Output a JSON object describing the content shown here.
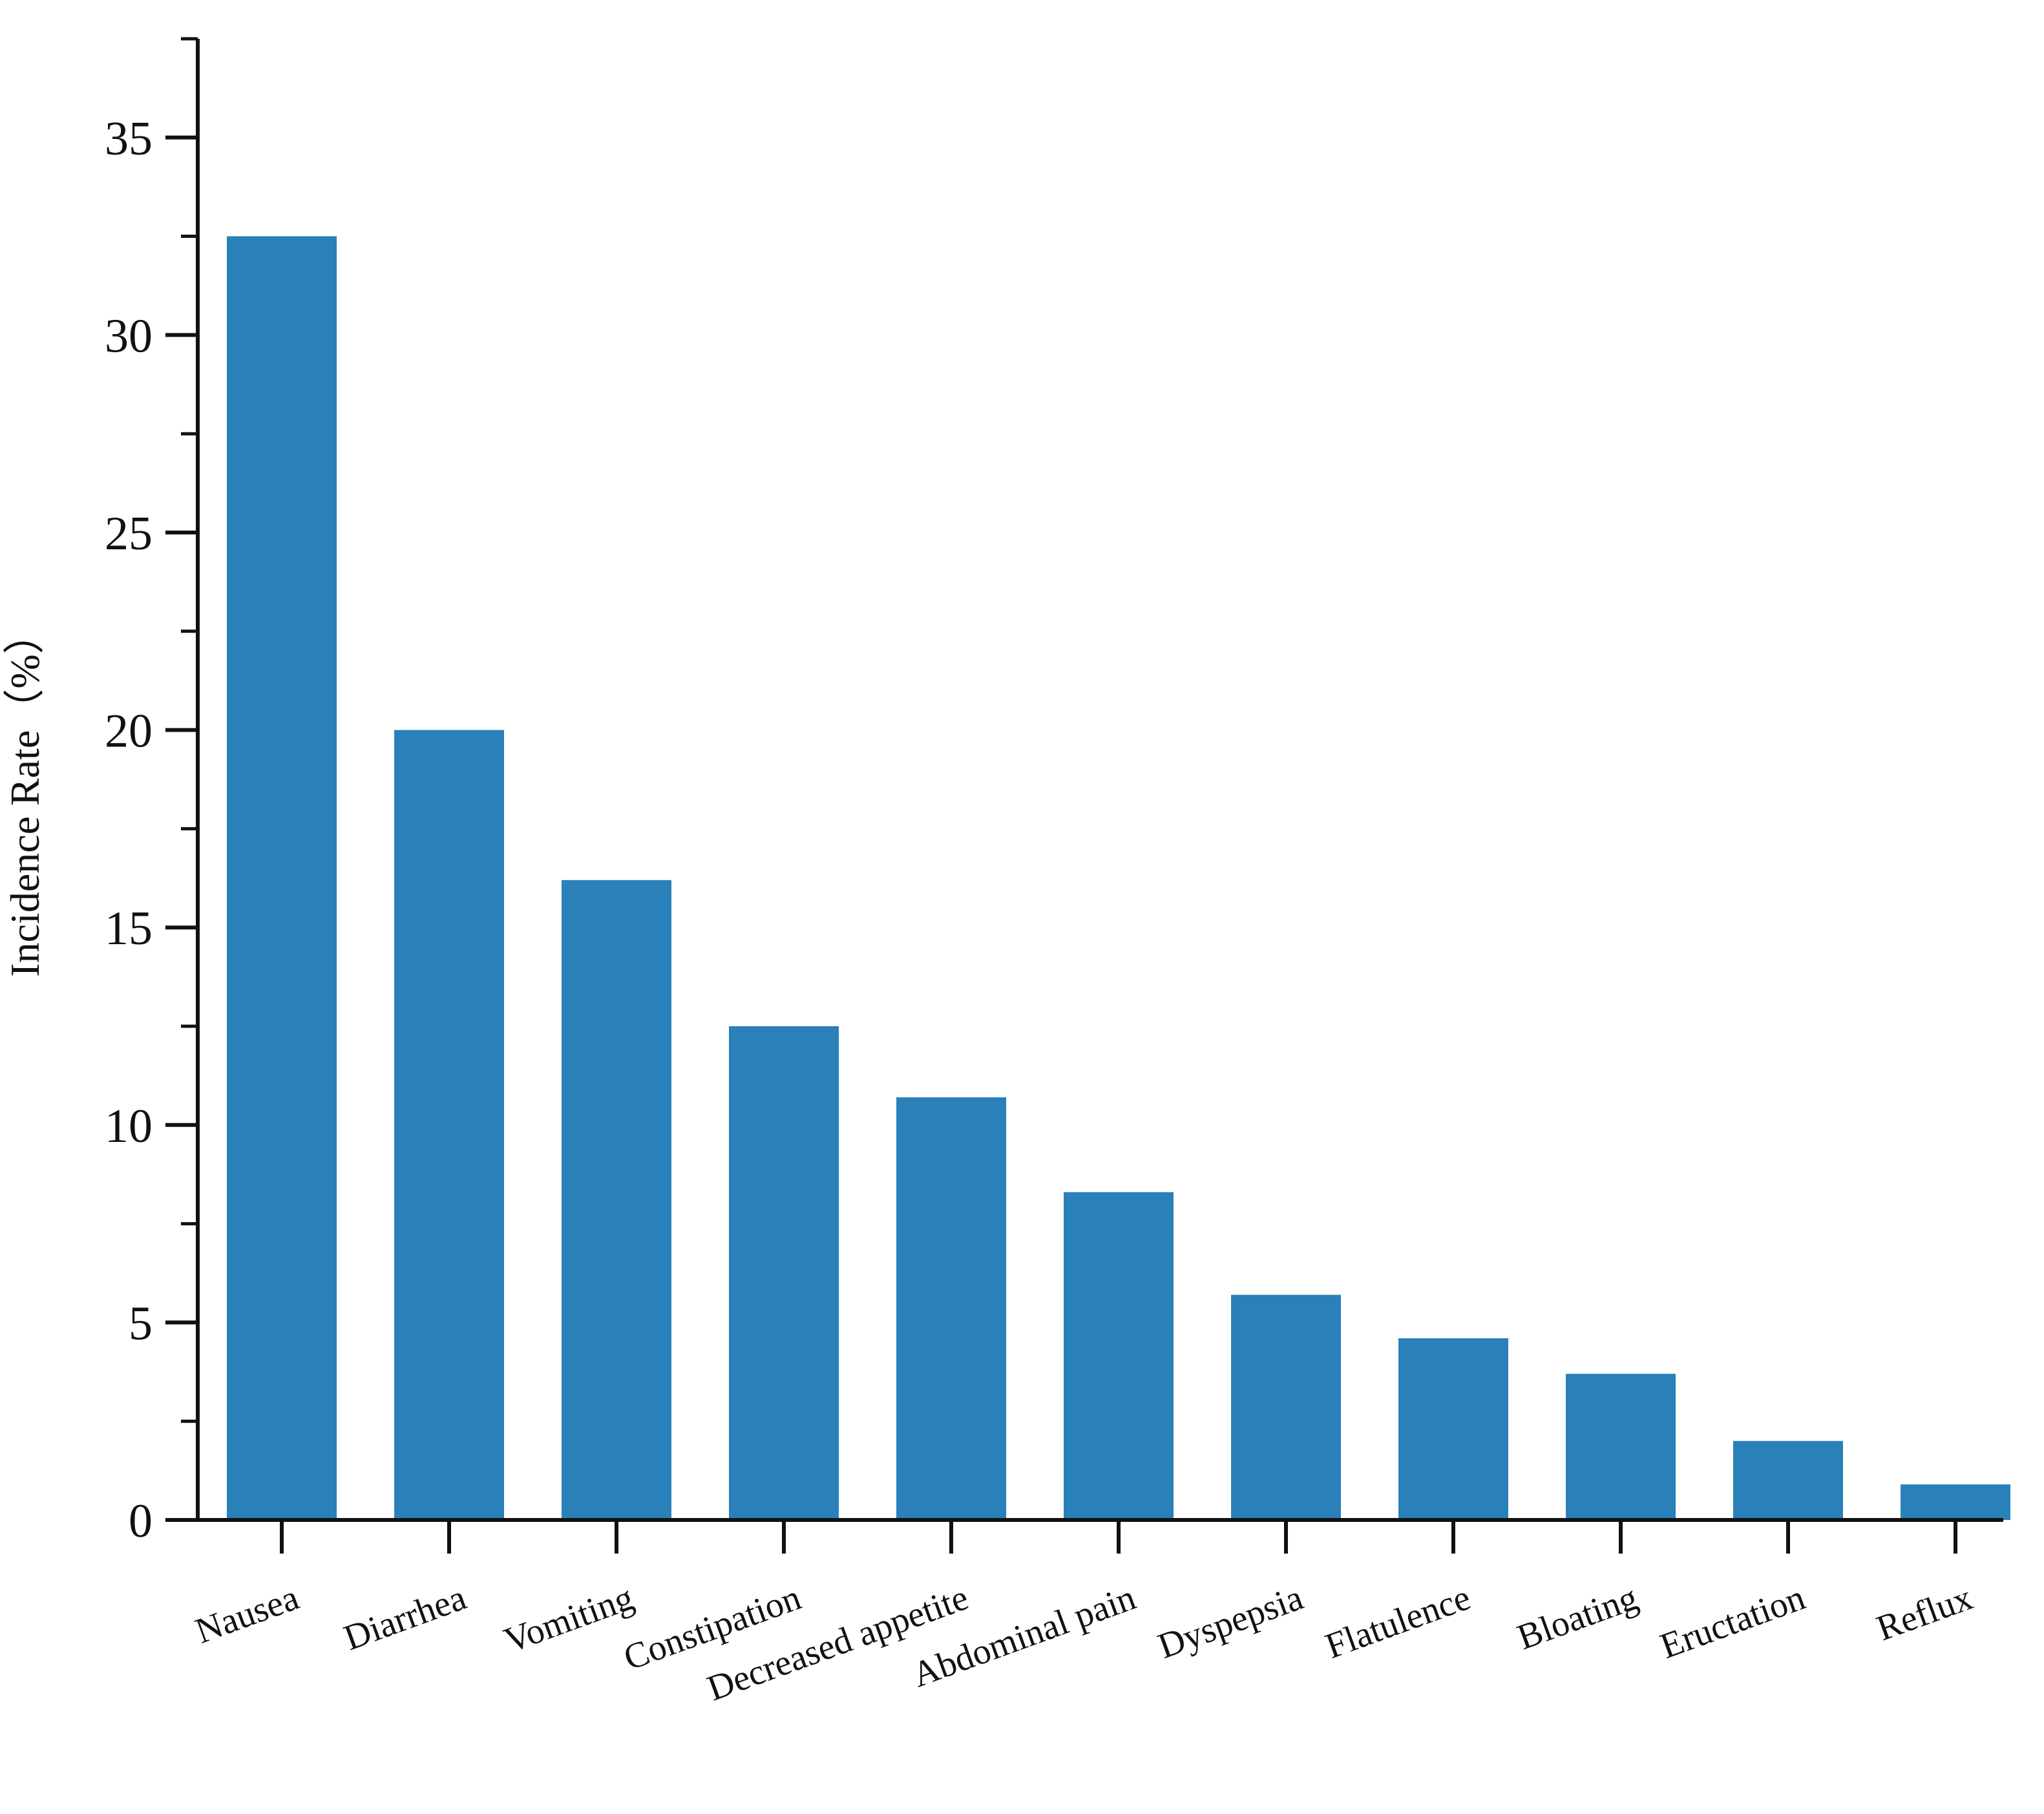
{
  "chart_data": {
    "type": "bar",
    "title": "",
    "xlabel": "",
    "ylabel": "Incidence Rate（%）",
    "categories": [
      "Nausea",
      "Diarrhea",
      "Vomiting",
      "Constipation",
      "Decreased appetite",
      "Abdominal pain",
      "Dyspepsia",
      "Flatulence",
      "Bloating",
      "Eructation",
      "Reflux"
    ],
    "values": [
      32.5,
      20.0,
      16.2,
      12.5,
      10.7,
      8.3,
      5.7,
      4.6,
      3.7,
      2.0,
      0.9
    ],
    "ylim": [
      0,
      37.5
    ],
    "yticks": [
      0,
      5,
      10,
      15,
      20,
      25,
      30,
      35
    ],
    "bar_color": "#2a80b9",
    "grid": false,
    "legend": "none"
  }
}
